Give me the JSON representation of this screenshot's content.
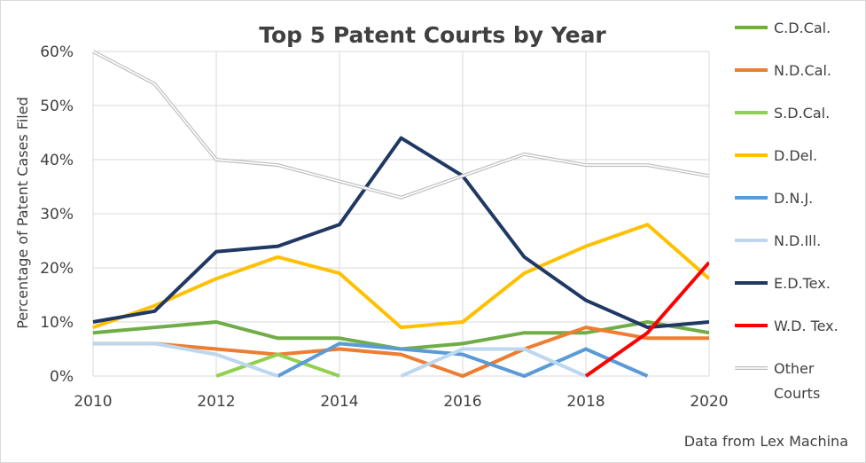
{
  "chart_data": {
    "type": "line",
    "title": "Top 5 Patent Courts by Year",
    "ylabel": "Percentage of Patent Cases Filed",
    "xlabel": "",
    "x": [
      2010,
      2011,
      2012,
      2013,
      2014,
      2015,
      2016,
      2017,
      2018,
      2019,
      2020
    ],
    "xticks": [
      "2010",
      "2012",
      "2014",
      "2016",
      "2018",
      "2020"
    ],
    "xlim": [
      2010,
      2020
    ],
    "yticks": [
      "0%",
      "10%",
      "20%",
      "30%",
      "40%",
      "50%",
      "60%"
    ],
    "ylim": [
      0,
      60
    ],
    "grid": true,
    "legend_position": "right",
    "source_note": "Data from Lex Machina",
    "series": [
      {
        "name": "C.D.Cal.",
        "color": "#70ad47",
        "values": [
          8,
          9,
          10,
          7,
          7,
          5,
          6,
          8,
          8,
          10,
          8
        ]
      },
      {
        "name": "N.D.Cal.",
        "color": "#ed7d31",
        "values": [
          6,
          6,
          5,
          4,
          5,
          4,
          0,
          5,
          9,
          7,
          7
        ]
      },
      {
        "name": "S.D.Cal.",
        "color": "#92d050",
        "values": [
          null,
          null,
          0,
          4,
          0,
          null,
          null,
          null,
          null,
          null,
          null
        ]
      },
      {
        "name": "D.Del.",
        "color": "#ffc000",
        "values": [
          9,
          13,
          18,
          22,
          19,
          9,
          10,
          19,
          24,
          28,
          18
        ]
      },
      {
        "name": "D.N.J.",
        "color": "#5b9bd5",
        "values": [
          null,
          null,
          null,
          0,
          6,
          5,
          4,
          0,
          5,
          0,
          null
        ]
      },
      {
        "name": "N.D.Ill.",
        "color": "#bdd7ee",
        "values": [
          6,
          6,
          4,
          0,
          null,
          0,
          5,
          5,
          0,
          null,
          null
        ]
      },
      {
        "name": "E.D.Tex.",
        "color": "#203864",
        "values": [
          10,
          12,
          23,
          24,
          28,
          44,
          37,
          22,
          14,
          9,
          10
        ]
      },
      {
        "name": "W.D. Tex.",
        "color": "#ff0000",
        "values": [
          null,
          null,
          null,
          null,
          null,
          null,
          null,
          null,
          0,
          8,
          21
        ]
      },
      {
        "name": "Other Courts",
        "color": "#d0d0d0",
        "style": "double",
        "values": [
          60,
          54,
          40,
          39,
          36,
          33,
          37,
          41,
          39,
          39,
          37
        ]
      }
    ]
  }
}
